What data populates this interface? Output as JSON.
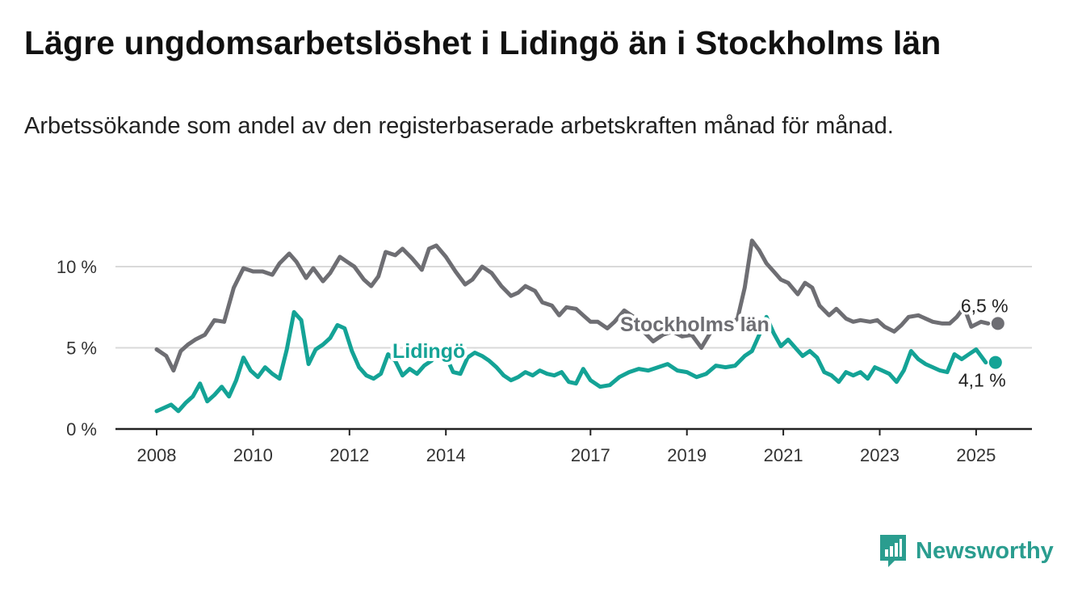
{
  "title": "Lägre ungdomsarbetslöshet i Lidingö än i Stockholms län",
  "subtitle": "Arbetssökande som andel av den registerbaserade arbetskraften månad för månad.",
  "brand": {
    "name": "Newsworthy",
    "icon": "newsworthy-logo-icon",
    "color": "#2a9d8f"
  },
  "chart_data": {
    "type": "line",
    "x_unit": "year",
    "xlim": [
      2006.8,
      2026.0
    ],
    "ylim": [
      0,
      10
    ],
    "yticks": [
      {
        "value": 0,
        "label": "0 %"
      },
      {
        "value": 5,
        "label": "5 %"
      },
      {
        "value": 10,
        "label": "10 %"
      }
    ],
    "xticks": [
      {
        "value": 2008,
        "label": "2008"
      },
      {
        "value": 2010,
        "label": "2010"
      },
      {
        "value": 2012,
        "label": "2012"
      },
      {
        "value": 2014,
        "label": "2014"
      },
      {
        "value": 2017,
        "label": "2017"
      },
      {
        "value": 2019,
        "label": "2019"
      },
      {
        "value": 2021,
        "label": "2021"
      },
      {
        "value": 2023,
        "label": "2023"
      },
      {
        "value": 2025,
        "label": "2025"
      }
    ],
    "grid": "horizontal",
    "series": [
      {
        "name": "Stockholms län",
        "color": "#6e6e73",
        "end_label": "6,5 %",
        "x": [
          2008.0,
          2008.2,
          2008.35,
          2008.5,
          2008.65,
          2008.8,
          2009.0,
          2009.2,
          2009.4,
          2009.6,
          2009.8,
          2010.0,
          2010.2,
          2010.4,
          2010.55,
          2010.75,
          2010.9,
          2011.1,
          2011.25,
          2011.45,
          2011.6,
          2011.8,
          2011.95,
          2012.1,
          2012.3,
          2012.45,
          2012.6,
          2012.75,
          2012.95,
          2013.1,
          2013.3,
          2013.5,
          2013.65,
          2013.8,
          2014.0,
          2014.2,
          2014.4,
          2014.55,
          2014.75,
          2014.95,
          2015.15,
          2015.35,
          2015.5,
          2015.65,
          2015.85,
          2016.0,
          2016.2,
          2016.35,
          2016.5,
          2016.7,
          2016.85,
          2017.0,
          2017.15,
          2017.35,
          2017.5,
          2017.7,
          2017.9,
          2018.1,
          2018.3,
          2018.5,
          2018.7,
          2018.9,
          2019.1,
          2019.3,
          2019.5,
          2019.7,
          2019.9,
          2020.05,
          2020.2,
          2020.35,
          2020.5,
          2020.65,
          2020.8,
          2020.95,
          2021.1,
          2021.3,
          2021.45,
          2021.6,
          2021.75,
          2021.95,
          2022.1,
          2022.3,
          2022.45,
          2022.6,
          2022.8,
          2022.95,
          2023.1,
          2023.3,
          2023.45,
          2023.6,
          2023.8,
          2023.95,
          2024.1,
          2024.3,
          2024.45,
          2024.6,
          2024.75,
          2024.9,
          2025.1,
          2025.25
        ],
        "y": [
          4.9,
          4.5,
          3.6,
          4.8,
          5.2,
          5.5,
          5.8,
          6.7,
          6.6,
          8.7,
          9.9,
          9.7,
          9.7,
          9.5,
          10.2,
          10.8,
          10.3,
          9.3,
          9.9,
          9.1,
          9.6,
          10.6,
          10.3,
          10.0,
          9.2,
          8.8,
          9.4,
          10.9,
          10.7,
          11.1,
          10.5,
          9.8,
          11.1,
          11.3,
          10.6,
          9.7,
          8.9,
          9.2,
          10.0,
          9.6,
          8.8,
          8.2,
          8.4,
          8.8,
          8.5,
          7.8,
          7.6,
          7.0,
          7.5,
          7.4,
          7.0,
          6.6,
          6.6,
          6.2,
          6.6,
          7.3,
          6.9,
          6.0,
          5.4,
          5.8,
          6.0,
          5.7,
          5.8,
          5.0,
          6.0,
          6.2,
          6.4,
          6.8,
          8.7,
          11.6,
          11.0,
          10.2,
          9.7,
          9.2,
          9.0,
          8.3,
          9.0,
          8.7,
          7.6,
          7.0,
          7.4,
          6.8,
          6.6,
          6.7,
          6.6,
          6.7,
          6.3,
          6.0,
          6.4,
          6.9,
          7.0,
          6.8,
          6.6,
          6.5,
          6.5,
          6.9,
          7.5,
          6.3,
          6.6,
          6.5
        ]
      },
      {
        "name": "Lidingö",
        "color": "#14a396",
        "end_label": "4,1 %",
        "x": [
          2008.0,
          2008.15,
          2008.3,
          2008.45,
          2008.6,
          2008.75,
          2008.9,
          2009.05,
          2009.2,
          2009.35,
          2009.5,
          2009.65,
          2009.8,
          2009.95,
          2010.1,
          2010.25,
          2010.4,
          2010.55,
          2010.7,
          2010.85,
          2011.0,
          2011.15,
          2011.3,
          2011.45,
          2011.6,
          2011.75,
          2011.9,
          2012.05,
          2012.2,
          2012.35,
          2012.5,
          2012.65,
          2012.8,
          2012.95,
          2013.1,
          2013.25,
          2013.4,
          2013.55,
          2013.7,
          2013.85,
          2014.0,
          2014.15,
          2014.3,
          2014.45,
          2014.6,
          2014.75,
          2014.9,
          2015.05,
          2015.2,
          2015.35,
          2015.5,
          2015.65,
          2015.8,
          2015.95,
          2016.1,
          2016.25,
          2016.4,
          2016.55,
          2016.7,
          2016.85,
          2017.0,
          2017.2,
          2017.4,
          2017.6,
          2017.8,
          2018.0,
          2018.2,
          2018.4,
          2018.6,
          2018.8,
          2019.0,
          2019.2,
          2019.4,
          2019.6,
          2019.8,
          2020.0,
          2020.2,
          2020.35,
          2020.5,
          2020.65,
          2020.8,
          2020.95,
          2021.1,
          2021.25,
          2021.4,
          2021.55,
          2021.7,
          2021.85,
          2022.0,
          2022.15,
          2022.3,
          2022.45,
          2022.6,
          2022.75,
          2022.9,
          2023.05,
          2023.2,
          2023.35,
          2023.5,
          2023.65,
          2023.8,
          2023.95,
          2024.1,
          2024.25,
          2024.4,
          2024.55,
          2024.7,
          2024.85,
          2025.0,
          2025.1,
          2025.2
        ],
        "y": [
          1.1,
          1.3,
          1.5,
          1.1,
          1.6,
          2.0,
          2.8,
          1.7,
          2.1,
          2.6,
          2.0,
          3.0,
          4.4,
          3.6,
          3.2,
          3.8,
          3.4,
          3.1,
          4.9,
          7.2,
          6.7,
          4.0,
          4.9,
          5.2,
          5.6,
          6.4,
          6.2,
          4.8,
          3.8,
          3.3,
          3.1,
          3.4,
          4.6,
          4.2,
          3.3,
          3.7,
          3.4,
          3.9,
          4.2,
          4.8,
          4.5,
          3.5,
          3.4,
          4.4,
          4.7,
          4.5,
          4.2,
          3.8,
          3.3,
          3.0,
          3.2,
          3.5,
          3.3,
          3.6,
          3.4,
          3.3,
          3.5,
          2.9,
          2.8,
          3.7,
          3.0,
          2.6,
          2.7,
          3.2,
          3.5,
          3.7,
          3.6,
          3.8,
          4.0,
          3.6,
          3.5,
          3.2,
          3.4,
          3.9,
          3.8,
          3.9,
          4.5,
          4.8,
          5.8,
          6.9,
          5.9,
          5.1,
          5.5,
          5.0,
          4.5,
          4.8,
          4.4,
          3.5,
          3.3,
          2.9,
          3.5,
          3.3,
          3.5,
          3.1,
          3.8,
          3.6,
          3.4,
          2.9,
          3.6,
          4.8,
          4.3,
          4.0,
          3.8,
          3.6,
          3.5,
          4.6,
          4.3,
          4.6,
          4.9,
          4.5,
          4.1
        ]
      }
    ]
  }
}
